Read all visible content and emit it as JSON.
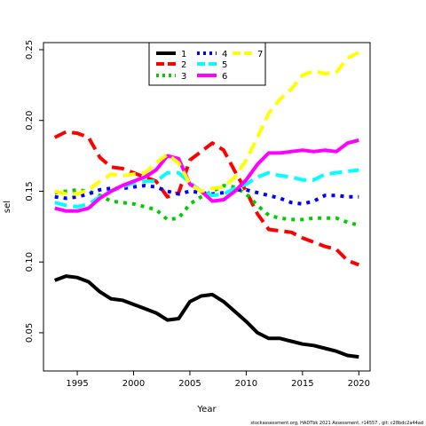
{
  "chart_data": {
    "type": "line",
    "title": "",
    "xlabel": "Year",
    "ylabel": "sel",
    "xlim": [
      1992,
      2021
    ],
    "ylim": [
      0.023,
      0.255
    ],
    "x_ticks": [
      1995,
      2000,
      2005,
      2010,
      2015,
      2020
    ],
    "y_ticks": [
      0.05,
      0.1,
      0.15,
      0.2,
      0.25
    ],
    "y_tick_labels": [
      "0.05",
      "0.10",
      "0.15",
      "0.20",
      "0.25"
    ],
    "grid": false,
    "legend_position": "top-center",
    "footnote": "stockassessment.org, HADTbk 2021 Assessment, r14557 , git: c28bdc2a44ad",
    "x": [
      1993,
      1994,
      1995,
      1996,
      1997,
      1998,
      1999,
      2000,
      2001,
      2002,
      2003,
      2004,
      2005,
      2006,
      2007,
      2008,
      2009,
      2010,
      2011,
      2012,
      2013,
      2014,
      2015,
      2016,
      2017,
      2018,
      2019,
      2020
    ],
    "series": [
      {
        "name": "1",
        "color": "#000000",
        "dash": "solid",
        "values": [
          0.087,
          0.09,
          0.089,
          0.086,
          0.079,
          0.074,
          0.073,
          0.07,
          0.067,
          0.064,
          0.059,
          0.06,
          0.072,
          0.076,
          0.077,
          0.072,
          0.065,
          0.058,
          0.05,
          0.046,
          0.046,
          0.044,
          0.042,
          0.041,
          0.039,
          0.037,
          0.034,
          0.033
        ]
      },
      {
        "name": "2",
        "color": "#ff0000",
        "dash": "long",
        "values": [
          0.188,
          0.192,
          0.191,
          0.188,
          0.174,
          0.167,
          0.166,
          0.163,
          0.16,
          0.157,
          0.146,
          0.149,
          0.172,
          0.178,
          0.184,
          0.179,
          0.164,
          0.15,
          0.134,
          0.123,
          0.122,
          0.121,
          0.117,
          0.114,
          0.111,
          0.109,
          0.101,
          0.098
        ]
      },
      {
        "name": "3",
        "color": "#00cd00",
        "dash": "dot",
        "values": [
          0.149,
          0.15,
          0.151,
          0.15,
          0.147,
          0.143,
          0.142,
          0.141,
          0.139,
          0.137,
          0.13,
          0.131,
          0.141,
          0.146,
          0.15,
          0.154,
          0.153,
          0.148,
          0.14,
          0.133,
          0.131,
          0.13,
          0.13,
          0.131,
          0.131,
          0.131,
          0.128,
          0.126
        ]
      },
      {
        "name": "4",
        "color": "#0000ff",
        "dash": "dot",
        "values": [
          0.146,
          0.145,
          0.146,
          0.148,
          0.151,
          0.152,
          0.152,
          0.153,
          0.154,
          0.153,
          0.15,
          0.148,
          0.15,
          0.149,
          0.148,
          0.149,
          0.151,
          0.151,
          0.149,
          0.147,
          0.145,
          0.142,
          0.141,
          0.143,
          0.147,
          0.147,
          0.146,
          0.146
        ]
      },
      {
        "name": "5",
        "color": "#00ffff",
        "dash": "long",
        "values": [
          0.142,
          0.14,
          0.139,
          0.141,
          0.146,
          0.15,
          0.153,
          0.156,
          0.157,
          0.157,
          0.163,
          0.163,
          0.156,
          0.15,
          0.147,
          0.148,
          0.152,
          0.155,
          0.16,
          0.163,
          0.161,
          0.16,
          0.158,
          0.158,
          0.162,
          0.163,
          0.164,
          0.165
        ]
      },
      {
        "name": "6",
        "color": "#ff00ff",
        "dash": "solid",
        "values": [
          0.138,
          0.136,
          0.136,
          0.138,
          0.145,
          0.15,
          0.154,
          0.157,
          0.16,
          0.165,
          0.175,
          0.173,
          0.155,
          0.15,
          0.143,
          0.144,
          0.15,
          0.158,
          0.169,
          0.177,
          0.177,
          0.178,
          0.179,
          0.178,
          0.179,
          0.178,
          0.184,
          0.186
        ]
      },
      {
        "name": "7",
        "color": "#ffff00",
        "dash": "long",
        "values": [
          0.15,
          0.148,
          0.148,
          0.151,
          0.157,
          0.162,
          0.161,
          0.162,
          0.163,
          0.17,
          0.176,
          0.17,
          0.155,
          0.15,
          0.152,
          0.153,
          0.16,
          0.172,
          0.188,
          0.205,
          0.215,
          0.222,
          0.232,
          0.235,
          0.233,
          0.234,
          0.244,
          0.248
        ]
      }
    ]
  }
}
